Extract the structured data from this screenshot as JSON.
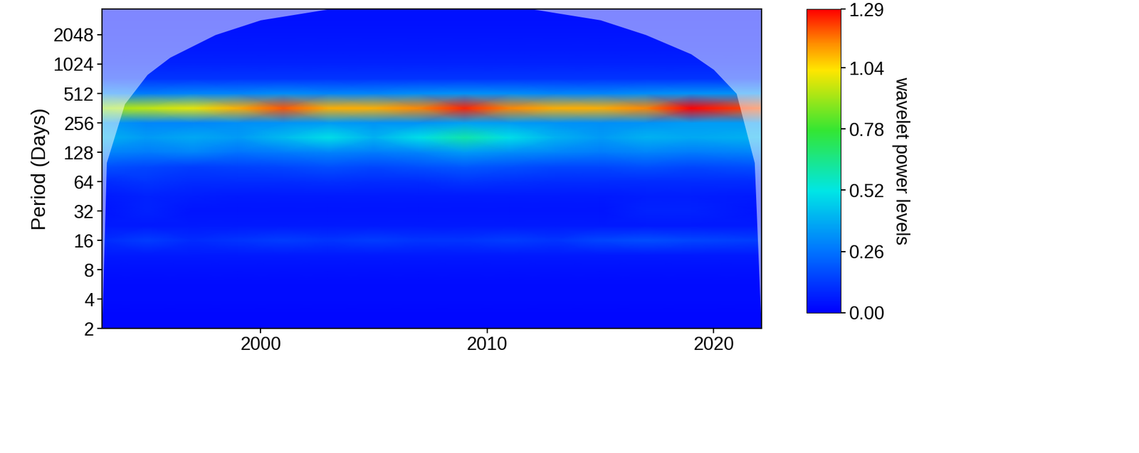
{
  "chart_data": {
    "type": "heatmap",
    "ylabel": "Period (Days)",
    "log": "y",
    "x": [
      1993.0,
      1995,
      1997,
      1999,
      2001,
      2003,
      2005,
      2007,
      2009,
      2011,
      2013,
      2015,
      2017,
      2019,
      2022.1
    ],
    "y": [
      2,
      2.83,
      4,
      5.66,
      8,
      11.3,
      16,
      22.6,
      32,
      45.3,
      64,
      90.5,
      128,
      181,
      256,
      362,
      512,
      724,
      1024,
      1448,
      2048,
      2896,
      4096
    ],
    "power": [
      [
        0.02,
        0.02,
        0.02,
        0.02,
        0.02,
        0.02,
        0.02,
        0.02,
        0.02,
        0.02,
        0.02,
        0.02,
        0.02,
        0.02,
        0.02
      ],
      [
        0.02,
        0.02,
        0.02,
        0.02,
        0.02,
        0.02,
        0.02,
        0.02,
        0.02,
        0.02,
        0.02,
        0.02,
        0.02,
        0.02,
        0.02
      ],
      [
        0.03,
        0.03,
        0.03,
        0.03,
        0.03,
        0.03,
        0.03,
        0.03,
        0.03,
        0.03,
        0.03,
        0.03,
        0.03,
        0.03,
        0.03
      ],
      [
        0.03,
        0.03,
        0.03,
        0.03,
        0.03,
        0.03,
        0.03,
        0.03,
        0.03,
        0.03,
        0.03,
        0.03,
        0.03,
        0.03,
        0.03
      ],
      [
        0.04,
        0.04,
        0.04,
        0.04,
        0.04,
        0.04,
        0.04,
        0.04,
        0.04,
        0.04,
        0.04,
        0.04,
        0.04,
        0.04,
        0.04
      ],
      [
        0.06,
        0.06,
        0.06,
        0.06,
        0.06,
        0.06,
        0.06,
        0.06,
        0.06,
        0.06,
        0.06,
        0.06,
        0.06,
        0.06,
        0.06
      ],
      [
        0.1,
        0.14,
        0.1,
        0.12,
        0.14,
        0.12,
        0.14,
        0.12,
        0.12,
        0.14,
        0.12,
        0.16,
        0.18,
        0.16,
        0.14
      ],
      [
        0.06,
        0.06,
        0.06,
        0.06,
        0.06,
        0.06,
        0.06,
        0.06,
        0.06,
        0.06,
        0.06,
        0.06,
        0.06,
        0.06,
        0.06
      ],
      [
        0.05,
        0.08,
        0.05,
        0.05,
        0.05,
        0.05,
        0.05,
        0.05,
        0.05,
        0.05,
        0.05,
        0.05,
        0.08,
        0.08,
        0.05
      ],
      [
        0.06,
        0.08,
        0.07,
        0.06,
        0.06,
        0.06,
        0.06,
        0.06,
        0.06,
        0.06,
        0.06,
        0.06,
        0.07,
        0.07,
        0.06
      ],
      [
        0.1,
        0.12,
        0.1,
        0.1,
        0.1,
        0.11,
        0.1,
        0.1,
        0.12,
        0.11,
        0.1,
        0.1,
        0.1,
        0.1,
        0.1
      ],
      [
        0.18,
        0.16,
        0.14,
        0.15,
        0.16,
        0.18,
        0.16,
        0.18,
        0.2,
        0.18,
        0.16,
        0.16,
        0.18,
        0.16,
        0.18
      ],
      [
        0.3,
        0.28,
        0.3,
        0.26,
        0.28,
        0.3,
        0.28,
        0.3,
        0.35,
        0.32,
        0.3,
        0.28,
        0.3,
        0.28,
        0.3
      ],
      [
        0.4,
        0.35,
        0.38,
        0.35,
        0.42,
        0.5,
        0.4,
        0.5,
        0.6,
        0.5,
        0.4,
        0.35,
        0.4,
        0.38,
        0.4
      ],
      [
        0.35,
        0.3,
        0.3,
        0.32,
        0.33,
        0.35,
        0.33,
        0.33,
        0.36,
        0.35,
        0.33,
        0.32,
        0.33,
        0.35,
        0.35
      ],
      [
        0.9,
        0.95,
        1.0,
        1.1,
        1.2,
        1.1,
        1.1,
        1.15,
        1.25,
        1.15,
        1.1,
        1.1,
        1.15,
        1.29,
        1.2
      ],
      [
        0.3,
        0.28,
        0.3,
        0.3,
        0.32,
        0.3,
        0.3,
        0.32,
        0.33,
        0.32,
        0.3,
        0.3,
        0.32,
        0.33,
        0.33
      ],
      [
        0.12,
        0.12,
        0.12,
        0.12,
        0.12,
        0.12,
        0.12,
        0.12,
        0.12,
        0.12,
        0.12,
        0.12,
        0.12,
        0.12,
        0.12
      ],
      [
        0.08,
        0.08,
        0.08,
        0.08,
        0.08,
        0.08,
        0.08,
        0.08,
        0.08,
        0.08,
        0.08,
        0.08,
        0.08,
        0.08,
        0.08
      ],
      [
        0.06,
        0.06,
        0.06,
        0.06,
        0.06,
        0.06,
        0.06,
        0.06,
        0.06,
        0.06,
        0.06,
        0.06,
        0.06,
        0.06,
        0.06
      ],
      [
        0.05,
        0.05,
        0.05,
        0.05,
        0.05,
        0.05,
        0.05,
        0.05,
        0.05,
        0.05,
        0.05,
        0.05,
        0.05,
        0.05,
        0.05
      ],
      [
        0.04,
        0.04,
        0.04,
        0.04,
        0.04,
        0.04,
        0.04,
        0.04,
        0.04,
        0.04,
        0.04,
        0.04,
        0.04,
        0.04,
        0.04
      ],
      [
        0.04,
        0.04,
        0.04,
        0.04,
        0.04,
        0.04,
        0.04,
        0.04,
        0.04,
        0.04,
        0.04,
        0.04,
        0.04,
        0.04,
        0.04
      ]
    ],
    "coi": {
      "x": [
        1993.0,
        1993.2,
        1994,
        1995,
        1996,
        1998,
        2000,
        2003,
        2012,
        2015,
        2017,
        2019,
        2020,
        2021,
        2021.8,
        2022.1
      ],
      "period": [
        2,
        100,
        400,
        800,
        1200,
        2048,
        2900,
        3755,
        3755,
        2900,
        2048,
        1300,
        900,
        512,
        100,
        2
      ]
    },
    "xlim": [
      1993.0,
      2022.1
    ],
    "xticks": [
      2000,
      2010,
      2020
    ],
    "ylim": [
      2,
      3755
    ],
    "yticks": [
      2,
      4,
      8,
      16,
      32,
      64,
      128,
      256,
      512,
      1024,
      2048
    ],
    "colorbar": {
      "label": "wavelet power levels",
      "range": [
        0,
        1.29
      ],
      "ticks": [
        {
          "value": 0,
          "label": "0.00"
        },
        0.26,
        0.52,
        0.78,
        1.04,
        1.29
      ]
    }
  }
}
